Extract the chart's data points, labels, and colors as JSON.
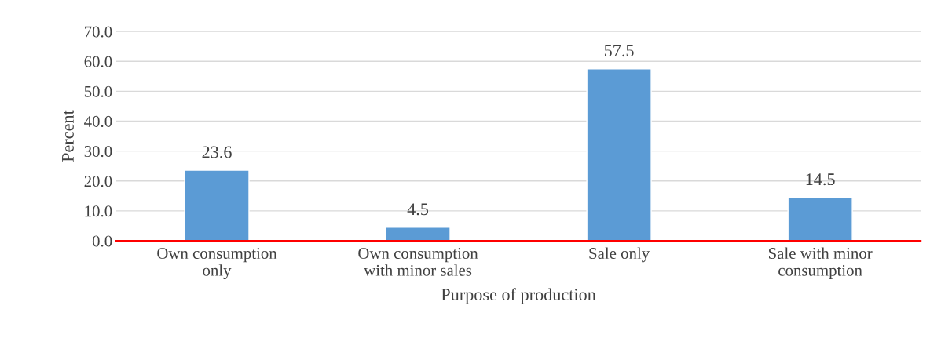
{
  "chart_data": {
    "type": "bar",
    "xlabel": "Purpose of production",
    "ylabel": "Percent",
    "categories": [
      "Own consumption only",
      "Own consumption with minor sales",
      "Sale only",
      "Sale with minor consumption"
    ],
    "values": [
      23.6,
      4.5,
      57.5,
      14.5
    ],
    "color": "#5b9bd5",
    "data_labels": true,
    "ylim": [
      0,
      70
    ],
    "yticks": [
      {
        "value": 0,
        "label": "0.0"
      },
      {
        "value": 10,
        "label": "10.0"
      },
      {
        "value": 20,
        "label": "20.0"
      },
      {
        "value": 30,
        "label": "30.0"
      },
      {
        "value": 40,
        "label": "40.0"
      },
      {
        "value": 50,
        "label": "50.0"
      },
      {
        "value": 60,
        "label": "60.0"
      },
      {
        "value": 70,
        "label": "70.0"
      }
    ],
    "grid": "y",
    "legend": false
  }
}
